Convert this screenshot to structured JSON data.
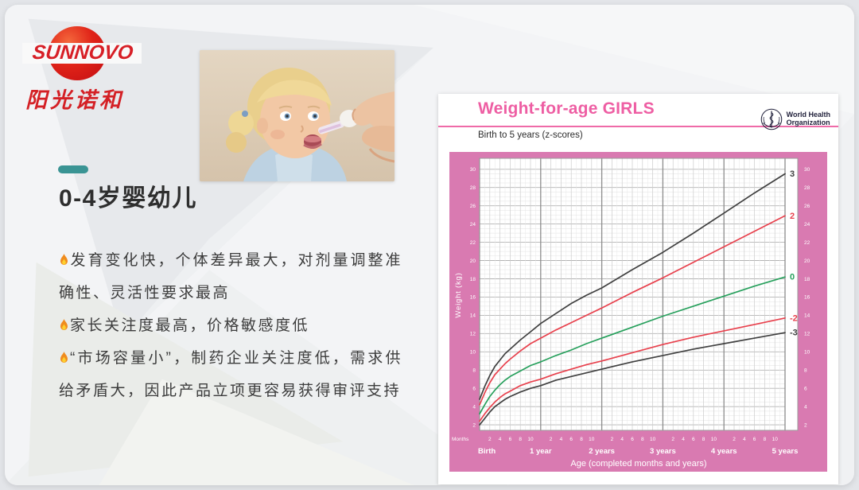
{
  "slide": {
    "logo": {
      "brand": "SUNNOVO",
      "brand_cn": "阳光诺和"
    },
    "accent_color": "#3a9494",
    "title": "0-4岁婴幼儿",
    "bullets": [
      "发育变化快，个体差异最大，对剂量调整准确性、灵活性要求最高",
      "家长关注度最高，价格敏感度低",
      "“市场容量小”，制药企业关注度低，需求供给矛盾大，因此产品立项更容易获得审评支持"
    ],
    "photo_alt": "toddler girl with blonde pigtails being given medicine from a dropper"
  },
  "who_chart": {
    "title": "Weight-for-age GIRLS",
    "subtitle": "Birth to 5 years (z-scores)",
    "org_line1": "World Health",
    "org_line2": "Organization",
    "months_label": "Months",
    "month_ticks": [
      2,
      4,
      6,
      8,
      10
    ],
    "year_labels": [
      "Birth",
      "1 year",
      "2 years",
      "3 years",
      "4 years",
      "5 years"
    ],
    "panel_color": "#d97ab1",
    "title_color": "#ee5ea3"
  },
  "chart_data": {
    "type": "line",
    "title": "Weight-for-age GIRLS",
    "subtitle": "Birth to 5 years (z-scores)",
    "xlabel": "Age (completed months and years)",
    "ylabel": "Weight (kg)",
    "xlim_months": [
      0,
      62.5
    ],
    "ylim": [
      1.4,
      31.2
    ],
    "grid": true,
    "legend_position": "line-end-labels",
    "yticks": [
      2,
      4,
      6,
      8,
      10,
      12,
      14,
      16,
      18,
      20,
      22,
      24,
      26,
      28,
      30
    ],
    "x_months": [
      0,
      1,
      2,
      3,
      4,
      5,
      6,
      8,
      10,
      12,
      15,
      18,
      21,
      24,
      30,
      36,
      42,
      48,
      54,
      60
    ],
    "series": [
      {
        "name": "3",
        "color": "#404040",
        "values": [
          4.8,
          6.2,
          7.4,
          8.4,
          9.1,
          9.8,
          10.3,
          11.3,
          12.2,
          13.1,
          14.2,
          15.3,
          16.2,
          17.0,
          19.0,
          20.9,
          23.0,
          25.2,
          27.4,
          29.5
        ]
      },
      {
        "name": "2",
        "color": "#e8414d",
        "values": [
          4.2,
          5.5,
          6.6,
          7.5,
          8.1,
          8.7,
          9.2,
          10.1,
          10.9,
          11.5,
          12.4,
          13.2,
          14.0,
          14.8,
          16.5,
          18.1,
          19.8,
          21.5,
          23.2,
          24.9
        ]
      },
      {
        "name": "0",
        "color": "#27a05c",
        "values": [
          3.2,
          4.2,
          5.1,
          5.8,
          6.4,
          6.9,
          7.3,
          7.9,
          8.5,
          8.9,
          9.6,
          10.2,
          10.9,
          11.5,
          12.7,
          13.9,
          15.0,
          16.1,
          17.2,
          18.2
        ]
      },
      {
        "name": "-2",
        "color": "#e8414d",
        "values": [
          2.4,
          3.2,
          3.9,
          4.5,
          5.0,
          5.4,
          5.7,
          6.3,
          6.7,
          7.0,
          7.6,
          8.1,
          8.6,
          9.0,
          9.9,
          10.8,
          11.6,
          12.3,
          13.0,
          13.7
        ]
      },
      {
        "name": "-3",
        "color": "#404040",
        "values": [
          2.0,
          2.7,
          3.4,
          4.0,
          4.4,
          4.8,
          5.1,
          5.6,
          6.0,
          6.3,
          6.9,
          7.3,
          7.7,
          8.1,
          8.9,
          9.6,
          10.3,
          10.9,
          11.5,
          12.1
        ]
      }
    ]
  }
}
